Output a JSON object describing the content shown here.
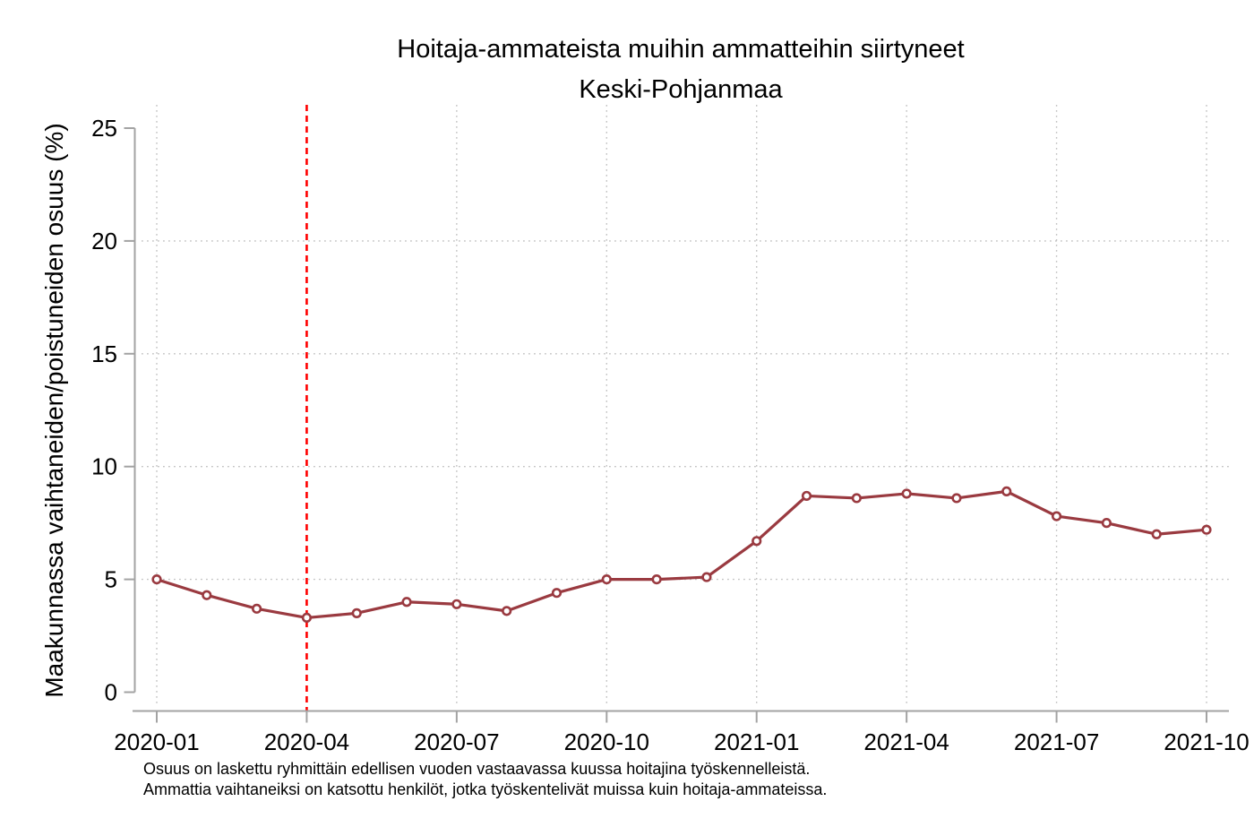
{
  "chart": {
    "title": "Hoitaja-ammateista muihin ammatteihin siirtyneet",
    "subtitle": "Keski-Pohjanmaa",
    "ylabel": "Maakunnassa vaihtaneiden/poistuneiden osuus (%)",
    "notes": [
      "Osuus on laskettu ryhmittäin edellisen vuoden vastaavassa kuussa hoitajina työskennelleistä.",
      "Ammattia vaihtaneiksi on katsottu henkilöt, jotka työskentelivät muissa kuin hoitaja-ammateissa."
    ]
  },
  "chart_data": {
    "type": "line",
    "title": "Hoitaja-ammateista muihin ammatteihin siirtyneet",
    "subtitle": "Keski-Pohjanmaa",
    "xlabel": "",
    "ylabel": "Maakunnassa vaihtaneiden/poistuneiden osuus (%)",
    "x": [
      "2020-01",
      "2020-02",
      "2020-03",
      "2020-04",
      "2020-05",
      "2020-06",
      "2020-07",
      "2020-08",
      "2020-09",
      "2020-10",
      "2020-11",
      "2020-12",
      "2021-01",
      "2021-02",
      "2021-03",
      "2021-04",
      "2021-05",
      "2021-06",
      "2021-07",
      "2021-08",
      "2021-09",
      "2021-10"
    ],
    "series": [
      {
        "name": "Keski-Pohjanmaa",
        "values": [
          5.0,
          4.3,
          3.7,
          3.3,
          3.5,
          4.0,
          3.9,
          3.6,
          4.4,
          5.0,
          5.0,
          5.1,
          6.7,
          8.7,
          8.6,
          8.8,
          8.6,
          8.9,
          7.8,
          7.5,
          7.0,
          7.2
        ]
      }
    ],
    "x_tick_labels": [
      "2020-01",
      "2020-04",
      "2020-07",
      "2020-10",
      "2021-01",
      "2021-04",
      "2021-07",
      "2021-10"
    ],
    "y_ticks": [
      0,
      5,
      10,
      15,
      20,
      25
    ],
    "y_gridlines": [
      5,
      10,
      15,
      20
    ],
    "ylim": [
      0,
      25
    ],
    "grid": "dotted",
    "legend": "none",
    "vline_x": "2020-04",
    "marker": "hollow-circle",
    "colors": {
      "series": "#9a3a40",
      "vline": "#ff0000",
      "grid": "#c2c2c2",
      "axis": "#a3a3a3",
      "text": "#000000",
      "background": "#ffffff"
    }
  }
}
